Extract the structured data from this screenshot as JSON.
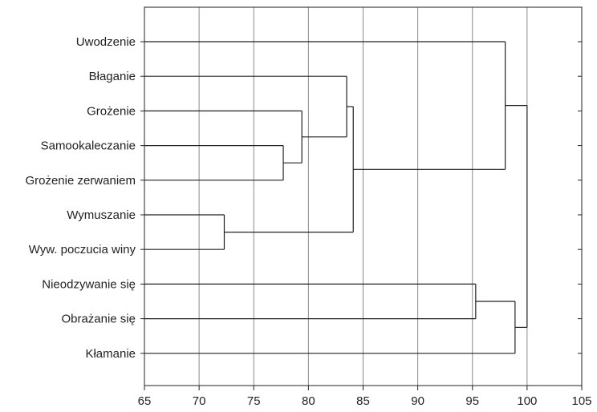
{
  "chart_data": {
    "type": "dendrogram",
    "title": "",
    "xlabel": "",
    "ylabel": "",
    "xlim": [
      65,
      105
    ],
    "xticks": [
      65,
      70,
      75,
      80,
      85,
      90,
      95,
      100,
      105
    ],
    "grid": "vertical",
    "leaves": [
      "Uwodzenie",
      "Błaganie",
      "Grożenie",
      "Samookaleczanie",
      "Grożenie zerwaniem",
      "Wymuszanie",
      "Wyw. poczucia winy",
      "Nieodzywanie się",
      "Obrażanie się",
      "Kłamanie"
    ],
    "merges": [
      {
        "id": "m1",
        "left": "Wymuszanie",
        "right": "Wyw. poczucia winy",
        "height": 72.3
      },
      {
        "id": "m2",
        "left": "Samookaleczanie",
        "right": "Grożenie zerwaniem",
        "height": 77.7
      },
      {
        "id": "m3",
        "left": "Grożenie",
        "right": "m2",
        "height": 79.4
      },
      {
        "id": "m4",
        "left": "Błaganie",
        "right": "m3",
        "height": 83.5
      },
      {
        "id": "m5",
        "left": "m4",
        "right": "m1",
        "height": 84.1
      },
      {
        "id": "m6",
        "left": "Nieodzywanie się",
        "right": "Obrażanie się",
        "height": 95.3
      },
      {
        "id": "m7",
        "left": "Uwodzenie",
        "right": "m5",
        "height": 98.0
      },
      {
        "id": "m8",
        "left": "m6",
        "right": "Kłamanie",
        "height": 98.9
      },
      {
        "id": "m9",
        "left": "m7",
        "right": "m8",
        "height": 100.0
      }
    ]
  }
}
